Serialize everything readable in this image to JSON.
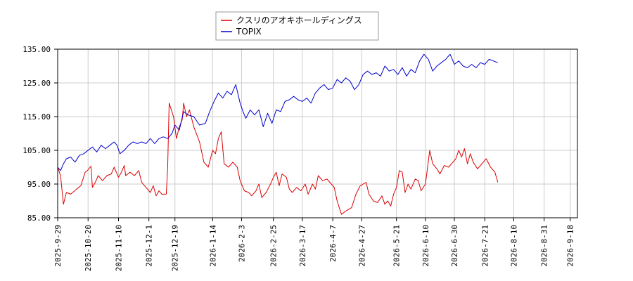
{
  "chart_data": {
    "type": "line",
    "ylim": [
      85,
      135
    ],
    "yticks": [
      85,
      95,
      105,
      115,
      125,
      135
    ],
    "ytick_labels": [
      "85.00",
      "95.00",
      "105.00",
      "115.00",
      "125.00",
      "135.00"
    ],
    "x_range": [
      "2025-09-29",
      "2026-09-23"
    ],
    "xticks": [
      "2025-9-29",
      "2025-10-20",
      "2025-11-10",
      "2025-12-1",
      "2025-12-19",
      "2026-1-14",
      "2026-2-3",
      "2026-2-25",
      "2026-3-17",
      "2026-4-7",
      "2026-4-27",
      "2026-5-21",
      "2026-6-10",
      "2026-6-30",
      "2026-7-21",
      "2026-8-10",
      "2026-8-31",
      "2026-9-18"
    ],
    "grid": true,
    "legend_position": "top-center",
    "series": [
      {
        "name": "クスリのアオキホールディングス",
        "color": "#dd0000",
        "points": [
          [
            "2025-09-29",
            100.0
          ],
          [
            "2025-10-01",
            97.5
          ],
          [
            "2025-10-03",
            89.0
          ],
          [
            "2025-10-05",
            92.5
          ],
          [
            "2025-10-08",
            92.0
          ],
          [
            "2025-10-12",
            93.5
          ],
          [
            "2025-10-15",
            94.5
          ],
          [
            "2025-10-18",
            98.5
          ],
          [
            "2025-10-20",
            99.2
          ],
          [
            "2025-10-22",
            100.3
          ],
          [
            "2025-10-23",
            94.0
          ],
          [
            "2025-10-25",
            95.5
          ],
          [
            "2025-10-27",
            97.5
          ],
          [
            "2025-10-30",
            96.0
          ],
          [
            "2025-11-02",
            97.5
          ],
          [
            "2025-11-05",
            98.0
          ],
          [
            "2025-11-07",
            100.0
          ],
          [
            "2025-11-10",
            97.0
          ],
          [
            "2025-11-12",
            98.5
          ],
          [
            "2025-11-14",
            100.5
          ],
          [
            "2025-11-15",
            97.5
          ],
          [
            "2025-11-18",
            98.5
          ],
          [
            "2025-11-21",
            97.5
          ],
          [
            "2025-11-24",
            99.0
          ],
          [
            "2025-11-26",
            95.5
          ],
          [
            "2025-11-30",
            93.5
          ],
          [
            "2025-12-02",
            92.5
          ],
          [
            "2025-12-04",
            94.5
          ],
          [
            "2025-12-06",
            91.5
          ],
          [
            "2025-12-08",
            93.0
          ],
          [
            "2025-12-10",
            92.0
          ],
          [
            "2025-12-13",
            92.0
          ],
          [
            "2025-12-14",
            100.0
          ],
          [
            "2025-12-15",
            119.0
          ],
          [
            "2025-12-18",
            115.0
          ],
          [
            "2025-12-20",
            108.5
          ],
          [
            "2025-12-22",
            112.0
          ],
          [
            "2025-12-24",
            114.0
          ],
          [
            "2025-12-25",
            119.0
          ],
          [
            "2025-12-27",
            115.0
          ],
          [
            "2025-12-29",
            117.0
          ],
          [
            "2026-01-01",
            112.0
          ],
          [
            "2026-01-05",
            107.5
          ],
          [
            "2026-01-08",
            101.5
          ],
          [
            "2026-01-11",
            100.0
          ],
          [
            "2026-01-14",
            105.0
          ],
          [
            "2026-01-16",
            104.0
          ],
          [
            "2026-01-18",
            108.5
          ],
          [
            "2026-01-20",
            110.5
          ],
          [
            "2026-01-22",
            101.0
          ],
          [
            "2026-01-25",
            100.0
          ],
          [
            "2026-01-28",
            101.5
          ],
          [
            "2026-01-31",
            100.0
          ],
          [
            "2026-02-02",
            96.0
          ],
          [
            "2026-02-05",
            93.0
          ],
          [
            "2026-02-08",
            92.5
          ],
          [
            "2026-02-10",
            91.5
          ],
          [
            "2026-02-13",
            93.0
          ],
          [
            "2026-02-15",
            95.0
          ],
          [
            "2026-02-17",
            91.0
          ],
          [
            "2026-02-20",
            92.5
          ],
          [
            "2026-02-23",
            95.0
          ],
          [
            "2026-02-25",
            97.0
          ],
          [
            "2026-02-27",
            98.5
          ],
          [
            "2026-03-01",
            94.5
          ],
          [
            "2026-03-03",
            98.0
          ],
          [
            "2026-03-06",
            97.0
          ],
          [
            "2026-03-08",
            93.5
          ],
          [
            "2026-03-10",
            92.5
          ],
          [
            "2026-03-13",
            94.0
          ],
          [
            "2026-03-16",
            93.0
          ],
          [
            "2026-03-19",
            95.0
          ],
          [
            "2026-03-21",
            92.0
          ],
          [
            "2026-03-24",
            95.0
          ],
          [
            "2026-03-26",
            93.5
          ],
          [
            "2026-03-28",
            97.5
          ],
          [
            "2026-03-31",
            96.0
          ],
          [
            "2026-04-03",
            96.5
          ],
          [
            "2026-04-06",
            95.0
          ],
          [
            "2026-04-08",
            94.0
          ],
          [
            "2026-04-10",
            90.0
          ],
          [
            "2026-04-13",
            86.0
          ],
          [
            "2026-04-16",
            87.0
          ],
          [
            "2026-04-20",
            88.0
          ],
          [
            "2026-04-23",
            92.0
          ],
          [
            "2026-04-26",
            94.5
          ],
          [
            "2026-04-28",
            95.0
          ],
          [
            "2026-04-30",
            95.5
          ],
          [
            "2026-05-02",
            92.0
          ],
          [
            "2026-05-05",
            90.0
          ],
          [
            "2026-05-08",
            89.5
          ],
          [
            "2026-05-11",
            91.5
          ],
          [
            "2026-05-13",
            89.0
          ],
          [
            "2026-05-15",
            90.0
          ],
          [
            "2026-05-17",
            88.5
          ],
          [
            "2026-05-19",
            92.0
          ],
          [
            "2026-05-21",
            94.0
          ],
          [
            "2026-05-23",
            99.0
          ],
          [
            "2026-05-25",
            98.5
          ],
          [
            "2026-05-27",
            92.5
          ],
          [
            "2026-05-29",
            95.0
          ],
          [
            "2026-05-31",
            93.5
          ],
          [
            "2026-06-03",
            96.5
          ],
          [
            "2026-06-05",
            96.0
          ],
          [
            "2026-06-07",
            93.0
          ],
          [
            "2026-06-10",
            95.0
          ],
          [
            "2026-06-13",
            105.0
          ],
          [
            "2026-06-15",
            101.0
          ],
          [
            "2026-06-18",
            99.5
          ],
          [
            "2026-06-20",
            98.0
          ],
          [
            "2026-06-23",
            100.5
          ],
          [
            "2026-06-26",
            100.0
          ],
          [
            "2026-06-29",
            101.5
          ],
          [
            "2026-07-01",
            102.5
          ],
          [
            "2026-07-03",
            105.0
          ],
          [
            "2026-07-05",
            103.0
          ],
          [
            "2026-07-07",
            105.5
          ],
          [
            "2026-07-09",
            101.0
          ],
          [
            "2026-07-11",
            104.0
          ],
          [
            "2026-07-13",
            101.5
          ],
          [
            "2026-07-16",
            99.5
          ],
          [
            "2026-07-19",
            101.0
          ],
          [
            "2026-07-22",
            102.5
          ],
          [
            "2026-07-25",
            100.0
          ],
          [
            "2026-07-28",
            98.5
          ],
          [
            "2026-07-30",
            95.5
          ]
        ]
      },
      {
        "name": "TOPIX",
        "color": "#0000cc",
        "points": [
          [
            "2025-09-29",
            100.0
          ],
          [
            "2025-10-01",
            99.0
          ],
          [
            "2025-10-03",
            101.0
          ],
          [
            "2025-10-05",
            102.5
          ],
          [
            "2025-10-08",
            103.0
          ],
          [
            "2025-10-11",
            101.5
          ],
          [
            "2025-10-14",
            103.5
          ],
          [
            "2025-10-17",
            104.0
          ],
          [
            "2025-10-20",
            105.0
          ],
          [
            "2025-10-23",
            106.0
          ],
          [
            "2025-10-26",
            104.5
          ],
          [
            "2025-10-29",
            106.5
          ],
          [
            "2025-11-01",
            105.5
          ],
          [
            "2025-11-04",
            106.5
          ],
          [
            "2025-11-07",
            107.5
          ],
          [
            "2025-11-09",
            106.5
          ],
          [
            "2025-11-11",
            104.0
          ],
          [
            "2025-11-14",
            105.0
          ],
          [
            "2025-11-17",
            106.5
          ],
          [
            "2025-11-20",
            107.5
          ],
          [
            "2025-11-23",
            107.0
          ],
          [
            "2025-11-26",
            107.5
          ],
          [
            "2025-11-29",
            107.0
          ],
          [
            "2025-12-02",
            108.5
          ],
          [
            "2025-12-05",
            107.0
          ],
          [
            "2025-12-08",
            108.5
          ],
          [
            "2025-12-11",
            109.0
          ],
          [
            "2025-12-14",
            108.5
          ],
          [
            "2025-12-17",
            110.0
          ],
          [
            "2025-12-19",
            112.5
          ],
          [
            "2025-12-22",
            111.0
          ],
          [
            "2025-12-25",
            116.5
          ],
          [
            "2025-12-28",
            115.5
          ],
          [
            "2026-01-01",
            115.0
          ],
          [
            "2026-01-05",
            112.5
          ],
          [
            "2026-01-09",
            113.0
          ],
          [
            "2026-01-12",
            116.5
          ],
          [
            "2026-01-15",
            119.5
          ],
          [
            "2026-01-18",
            122.0
          ],
          [
            "2026-01-21",
            120.5
          ],
          [
            "2026-01-24",
            122.5
          ],
          [
            "2026-01-27",
            121.5
          ],
          [
            "2026-01-30",
            124.5
          ],
          [
            "2026-02-02",
            119.0
          ],
          [
            "2026-02-04",
            116.5
          ],
          [
            "2026-02-06",
            114.5
          ],
          [
            "2026-02-09",
            117.0
          ],
          [
            "2026-02-12",
            115.5
          ],
          [
            "2026-02-15",
            117.0
          ],
          [
            "2026-02-18",
            112.0
          ],
          [
            "2026-02-21",
            116.0
          ],
          [
            "2026-02-24",
            113.0
          ],
          [
            "2026-02-27",
            117.0
          ],
          [
            "2026-03-02",
            116.5
          ],
          [
            "2026-03-05",
            119.5
          ],
          [
            "2026-03-08",
            120.0
          ],
          [
            "2026-03-11",
            121.0
          ],
          [
            "2026-03-14",
            120.0
          ],
          [
            "2026-03-17",
            119.5
          ],
          [
            "2026-03-20",
            120.5
          ],
          [
            "2026-03-23",
            119.0
          ],
          [
            "2026-03-26",
            122.0
          ],
          [
            "2026-03-29",
            123.5
          ],
          [
            "2026-04-01",
            124.5
          ],
          [
            "2026-04-04",
            123.0
          ],
          [
            "2026-04-07",
            123.5
          ],
          [
            "2026-04-10",
            126.0
          ],
          [
            "2026-04-13",
            125.0
          ],
          [
            "2026-04-16",
            126.5
          ],
          [
            "2026-04-19",
            125.5
          ],
          [
            "2026-04-22",
            123.0
          ],
          [
            "2026-04-25",
            124.5
          ],
          [
            "2026-04-28",
            127.5
          ],
          [
            "2026-05-01",
            128.5
          ],
          [
            "2026-05-04",
            127.5
          ],
          [
            "2026-05-07",
            128.0
          ],
          [
            "2026-05-10",
            127.0
          ],
          [
            "2026-05-13",
            130.0
          ],
          [
            "2026-05-16",
            128.5
          ],
          [
            "2026-05-19",
            129.0
          ],
          [
            "2026-05-22",
            127.5
          ],
          [
            "2026-05-25",
            129.5
          ],
          [
            "2026-05-28",
            127.0
          ],
          [
            "2026-05-31",
            129.0
          ],
          [
            "2026-06-03",
            128.0
          ],
          [
            "2026-06-06",
            131.5
          ],
          [
            "2026-06-09",
            133.5
          ],
          [
            "2026-06-12",
            132.0
          ],
          [
            "2026-06-15",
            128.5
          ],
          [
            "2026-06-18",
            130.0
          ],
          [
            "2026-06-21",
            131.0
          ],
          [
            "2026-06-24",
            132.0
          ],
          [
            "2026-06-27",
            133.5
          ],
          [
            "2026-06-30",
            130.5
          ],
          [
            "2026-07-03",
            131.5
          ],
          [
            "2026-07-06",
            130.0
          ],
          [
            "2026-07-09",
            129.5
          ],
          [
            "2026-07-12",
            130.5
          ],
          [
            "2026-07-15",
            129.5
          ],
          [
            "2026-07-18",
            131.0
          ],
          [
            "2026-07-21",
            130.5
          ],
          [
            "2026-07-24",
            132.0
          ],
          [
            "2026-07-27",
            131.5
          ],
          [
            "2026-07-30",
            131.0
          ]
        ]
      }
    ]
  }
}
